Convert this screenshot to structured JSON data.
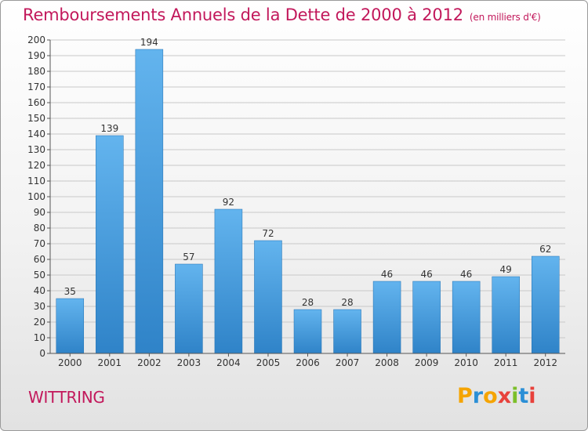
{
  "header": {
    "title": "Remboursements Annuels de la Dette de 2000 à 2012",
    "subtitle": "(en milliers d'€)"
  },
  "commune": "WITTRING",
  "logo": {
    "text": "Proxiti",
    "letter_colors": [
      "#f5a400",
      "#2b8fd6",
      "#f5a400",
      "#e8413b",
      "#7cbf2a",
      "#2b8fd6",
      "#e8413b"
    ]
  },
  "colors": {
    "bar_light": "#63b4ee",
    "bar_dark": "#2f83c8",
    "title": "#c2185b",
    "grid": "#c8c8c8"
  },
  "chart_data": {
    "type": "bar",
    "title": "Remboursements Annuels de la Dette de 2000 à 2012",
    "subtitle": "(en milliers d'€)",
    "categories": [
      "2000",
      "2001",
      "2002",
      "2003",
      "2004",
      "2005",
      "2006",
      "2007",
      "2008",
      "2009",
      "2010",
      "2011",
      "2012"
    ],
    "values": [
      35,
      139,
      194,
      57,
      92,
      72,
      28,
      28,
      46,
      46,
      46,
      49,
      62
    ],
    "ylim": [
      0,
      200
    ],
    "ytick_step": 10,
    "grid": true,
    "data_labels": true
  }
}
